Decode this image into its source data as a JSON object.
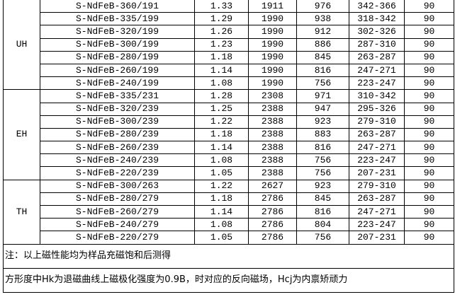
{
  "groups": [
    {
      "grade": "UH",
      "rows": [
        [
          "S-NdFeB-360/191",
          "1.33",
          "1911",
          "976",
          "342-366",
          "90"
        ],
        [
          "S-NdFeB-335/199",
          "1.29",
          "1990",
          "938",
          "318-342",
          "90"
        ],
        [
          "S-NdFeB-320/199",
          "1.26",
          "1990",
          "912",
          "302-326",
          "90"
        ],
        [
          "S-NdFeB-300/199",
          "1.23",
          "1990",
          "886",
          "287-310",
          "90"
        ],
        [
          "S-NdFeB-280/199",
          "1.18",
          "1990",
          "845",
          "263-287",
          "90"
        ],
        [
          "S-NdFeB-260/199",
          "1.14",
          "1990",
          "816",
          "247-271",
          "90"
        ],
        [
          "S-NdFeB-240/199",
          "1.08",
          "1990",
          "756",
          "223-247",
          "90"
        ]
      ]
    },
    {
      "grade": "EH",
      "rows": [
        [
          "S-NdFeB-335/231",
          "1.28",
          "2308",
          "971",
          "310-342",
          "90"
        ],
        [
          "S-NdFeB-320/239",
          "1.25",
          "2388",
          "947",
          "295-326",
          "90"
        ],
        [
          "S-NdFeB-300/239",
          "1.22",
          "2388",
          "923",
          "279-310",
          "90"
        ],
        [
          "S-NdFeB-280/239",
          "1.18",
          "2388",
          "883",
          "263-287",
          "90"
        ],
        [
          "S-NdFeB-260/239",
          "1.14",
          "2388",
          "816",
          "247-271",
          "90"
        ],
        [
          "S-NdFeB-240/239",
          "1.08",
          "2388",
          "756",
          "223-247",
          "90"
        ],
        [
          "S-NdFeB-220/239",
          "1.05",
          "2388",
          "756",
          "207-231",
          "90"
        ]
      ]
    },
    {
      "grade": "TH",
      "rows": [
        [
          "S-NdFeB-300/263",
          "1.22",
          "2627",
          "923",
          "279-310",
          "90"
        ],
        [
          "S-NdFeB-280/279",
          "1.18",
          "2786",
          "845",
          "263-287",
          "90"
        ],
        [
          "S-NdFeB-260/279",
          "1.14",
          "2786",
          "816",
          "247-271",
          "90"
        ],
        [
          "S-NdFeB-240/279",
          "1.08",
          "2786",
          "804",
          "223-247",
          "90"
        ],
        [
          "S-NdFeB-220/279",
          "1.05",
          "2786",
          "756",
          "207-231",
          "90"
        ]
      ]
    }
  ],
  "notes": [
    "注：以上磁性能均为样品充磁饱和后测得",
    "方形度中Hk为退磁曲线上磁极化强度为0.9B，时对应的反向磁场，Hcj为内禀矫顽力"
  ]
}
